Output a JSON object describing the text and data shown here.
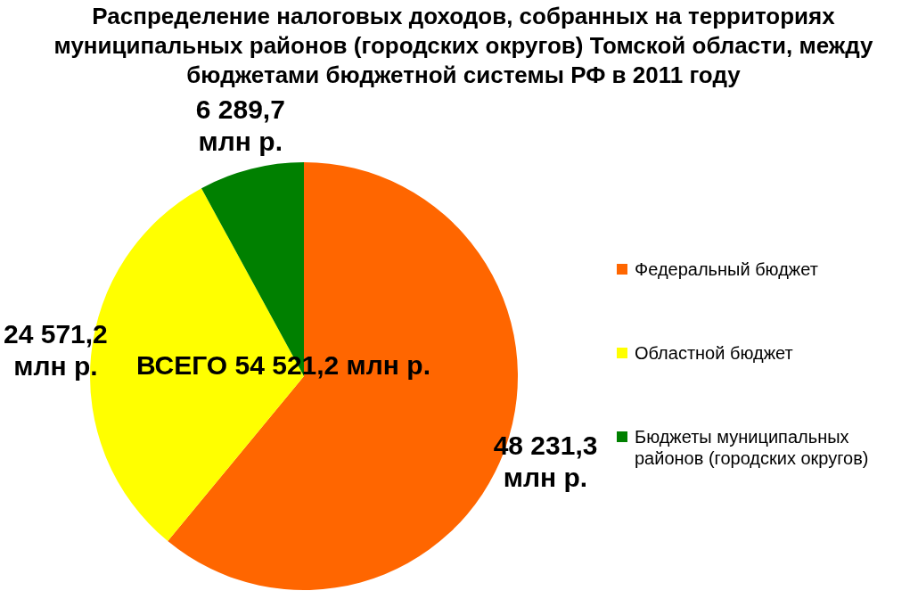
{
  "chart_data": {
    "type": "pie",
    "title": "Распределение налоговых доходов, собранных на территориях муниципальных районов (городских округов) Томской области, между бюджетами бюджетной системы РФ в 2011 году",
    "categories": [
      "Федеральный бюджет",
      "Областной бюджет",
      "Бюджеты муниципальных районов (городских округов)"
    ],
    "values": [
      48231.3,
      24571.2,
      6289.7
    ],
    "colors": [
      "#ff6600",
      "#ffff00",
      "#008000"
    ],
    "value_labels": [
      "48 231,3 млн р.",
      "24 571,2 млн р.",
      "6 289,7 млн р."
    ],
    "annotations": [
      "ВСЕГО 54 521,2 млн р."
    ],
    "legend": "right"
  }
}
